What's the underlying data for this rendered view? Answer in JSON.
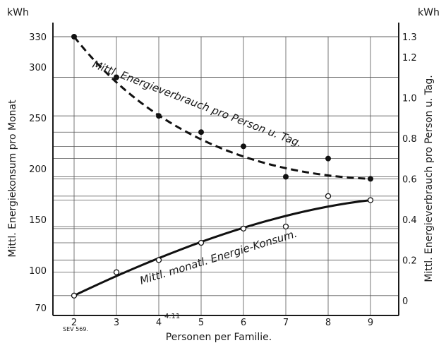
{
  "chart_data": {
    "type": "line",
    "x_label": "Personen per Familie.",
    "x_ticks": [
      "2",
      "3",
      "4",
      "5",
      "6",
      "7",
      "8",
      "9"
    ],
    "y_left": {
      "label": "Mittl. Energiekonsum pro Monat",
      "unit": "kWh",
      "range": [
        70,
        330
      ],
      "ticks": [
        "330",
        "300",
        "250",
        "200",
        "150",
        "100",
        "70"
      ]
    },
    "y_right": {
      "label": "Mittl. Energieverbrauch pro Person u. Tag.",
      "unit": "kWh",
      "range": [
        0,
        1.3
      ],
      "ticks": [
        "1.3",
        "1.2",
        "1.0",
        "0.8",
        "0.6",
        "0.4",
        "0.2",
        "0"
      ]
    },
    "annotation": "4.11",
    "source_mark": "SEV 569.",
    "series": [
      {
        "name": "Mittl. Energieverbrauch pro Person u. Tag.",
        "axis": "right",
        "style": "dashed",
        "points": [
          {
            "x": 2,
            "y": 1.3
          },
          {
            "x": 3,
            "y": 1.1
          },
          {
            "x": 4,
            "y": 0.91
          },
          {
            "x": 5,
            "y": 0.83
          },
          {
            "x": 6,
            "y": 0.76
          },
          {
            "x": 7,
            "y": 0.61
          },
          {
            "x": 8,
            "y": 0.7
          },
          {
            "x": 9,
            "y": 0.6
          }
        ]
      },
      {
        "name": "Mittl. monatl. Energie-Konsum.",
        "axis": "left",
        "style": "solid",
        "points": [
          {
            "x": 2,
            "y": 75
          },
          {
            "x": 3,
            "y": 98
          },
          {
            "x": 4,
            "y": 110
          },
          {
            "x": 5,
            "y": 127
          },
          {
            "x": 6,
            "y": 141
          },
          {
            "x": 7,
            "y": 143
          },
          {
            "x": 8,
            "y": 173
          },
          {
            "x": 9,
            "y": 169
          }
        ]
      }
    ]
  }
}
